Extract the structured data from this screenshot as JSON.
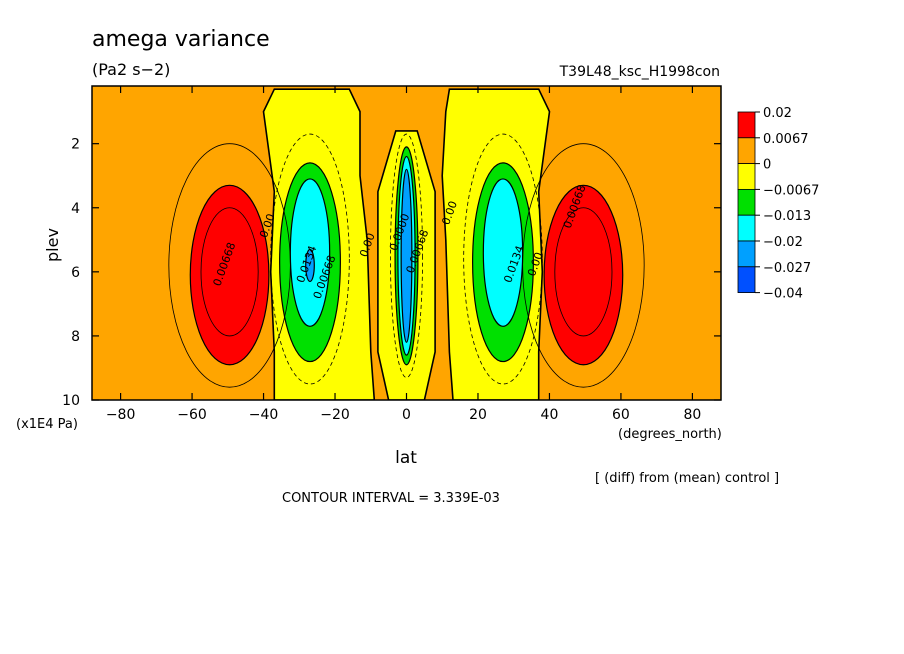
{
  "chart_data": {
    "type": "heatmap",
    "title": "amega variance",
    "subtitle": "(Pa2 s−2)",
    "experiment": "T39L48_ksc_H1998con",
    "xlabel": "lat",
    "x_units": "(degrees_north)",
    "ylabel": "plev",
    "y_units": "(x1E4 Pa)",
    "xlim": [
      -88,
      88
    ],
    "ylim": [
      10,
      0.2
    ],
    "x_ticks": [
      "−80",
      "−60",
      "−40",
      "−20",
      "0",
      "20",
      "40",
      "60",
      "80"
    ],
    "x_tick_values": [
      -80,
      -60,
      -40,
      -20,
      0,
      20,
      40,
      60,
      80
    ],
    "y_ticks": [
      "2",
      "4",
      "6",
      "8",
      "10"
    ],
    "y_tick_values": [
      2,
      4,
      6,
      8,
      10
    ],
    "note": "[ (diff) from (mean) control ]",
    "contour_interval": "CONTOUR INTERVAL = 3.339E-03",
    "contour_labels": [
      {
        "text": "0.00668",
        "lat": -50,
        "plev": 5.8
      },
      {
        "text": "0.00",
        "lat": -38,
        "plev": 4.6
      },
      {
        "text": "0.0134",
        "lat": -27,
        "plev": 5.8
      },
      {
        "text": "0.00668",
        "lat": -22,
        "plev": 6.2
      },
      {
        "text": "0.00",
        "lat": -10,
        "plev": 5.2
      },
      {
        "text": "0.0000",
        "lat": -1,
        "plev": 4.8
      },
      {
        "text": "0.00668",
        "lat": 4,
        "plev": 5.4
      },
      {
        "text": "0.00",
        "lat": 13,
        "plev": 4.2
      },
      {
        "text": "0.0134",
        "lat": 31,
        "plev": 5.8
      },
      {
        "text": "0.00",
        "lat": 37,
        "plev": 5.8
      },
      {
        "text": "0.00668",
        "lat": 48,
        "plev": 4.0
      }
    ],
    "legend": {
      "levels": [
        "0.02",
        "0.0067",
        "0",
        "−0.0067",
        "−0.013",
        "−0.02",
        "−0.027",
        "−0.04"
      ],
      "colors": [
        "#ff0000",
        "#ffa500",
        "#ffff00",
        "#00e000",
        "#00ffff",
        "#00a0ff",
        "#0050ff"
      ]
    },
    "field": {
      "background_color": "#ffa500",
      "regions": [
        {
          "color": "#ffff00",
          "shape": "poly",
          "points": [
            [
              -37,
              0.3
            ],
            [
              -40,
              1.0
            ],
            [
              -37,
              3.5
            ],
            [
              -38,
              6.0
            ],
            [
              -37,
              8.5
            ],
            [
              -37,
              10
            ],
            [
              -9,
              10
            ],
            [
              -10,
              8.5
            ],
            [
              -11,
              5.0
            ],
            [
              -13,
              3.0
            ],
            [
              -13,
              1.0
            ],
            [
              -16,
              0.3
            ]
          ]
        },
        {
          "color": "#ffff00",
          "shape": "poly",
          "points": [
            [
              12,
              0.3
            ],
            [
              11,
              1.0
            ],
            [
              10,
              3.0
            ],
            [
              11,
              5.0
            ],
            [
              12,
              8.5
            ],
            [
              13,
              10
            ],
            [
              37,
              10
            ],
            [
              37,
              8.5
            ],
            [
              38,
              6.0
            ],
            [
              37,
              3.5
            ],
            [
              40,
              1.0
            ],
            [
              37,
              0.3
            ]
          ]
        },
        {
          "color": "#ffff00",
          "shape": "poly",
          "points": [
            [
              -3,
              1.6
            ],
            [
              -8,
              3.5
            ],
            [
              -8,
              8.5
            ],
            [
              -5,
              10
            ],
            [
              5,
              10
            ],
            [
              8,
              8.5
            ],
            [
              8,
              3.5
            ],
            [
              3,
              1.6
            ]
          ]
        },
        {
          "color": "#ff0000",
          "shape": "ellipse",
          "cx": -49.5,
          "cy": 6.1,
          "rx": 11,
          "ry": 2.8
        },
        {
          "color": "#ff0000",
          "shape": "ellipse",
          "cx": 49.5,
          "cy": 6.1,
          "rx": 11,
          "ry": 2.8
        },
        {
          "color": "#00e000",
          "shape": "ellipse",
          "cx": -27,
          "cy": 5.7,
          "rx": 8.5,
          "ry": 3.1
        },
        {
          "color": "#00ffff",
          "shape": "ellipse",
          "cx": -27,
          "cy": 5.4,
          "rx": 5.5,
          "ry": 2.3
        },
        {
          "color": "#00a0ff",
          "shape": "ellipse",
          "cx": -27,
          "cy": 5.8,
          "rx": 1.2,
          "ry": 0.5
        },
        {
          "color": "#00e000",
          "shape": "ellipse",
          "cx": 27,
          "cy": 5.7,
          "rx": 8.5,
          "ry": 3.1
        },
        {
          "color": "#00ffff",
          "shape": "ellipse",
          "cx": 27,
          "cy": 5.4,
          "rx": 5.5,
          "ry": 2.3
        },
        {
          "color": "#00e000",
          "shape": "ellipse",
          "cx": 0,
          "cy": 5.5,
          "rx": 3.2,
          "ry": 3.4
        },
        {
          "color": "#00ffff",
          "shape": "ellipse",
          "cx": 0,
          "cy": 5.5,
          "rx": 2.4,
          "ry": 3.1
        },
        {
          "color": "#00a0ff",
          "shape": "ellipse",
          "cx": 0,
          "cy": 5.5,
          "rx": 1.5,
          "ry": 2.7
        }
      ],
      "outline_contours": [
        {
          "cx": -49.5,
          "cy": 5.8,
          "rx": 17,
          "ry": 3.8
        },
        {
          "cx": 49.5,
          "cy": 5.8,
          "rx": 17,
          "ry": 3.8
        },
        {
          "cx": -49.5,
          "cy": 6.0,
          "rx": 8,
          "ry": 2.0
        },
        {
          "cx": 49.5,
          "cy": 6.0,
          "rx": 8,
          "ry": 2.0
        }
      ],
      "dashed_contours": [
        {
          "cx": -27,
          "cy": 5.6,
          "rx": 11,
          "ry": 3.9
        },
        {
          "cx": 27,
          "cy": 5.6,
          "rx": 11,
          "ry": 3.9
        },
        {
          "cx": 0,
          "cy": 5.5,
          "rx": 4.5,
          "ry": 3.8
        }
      ]
    }
  }
}
